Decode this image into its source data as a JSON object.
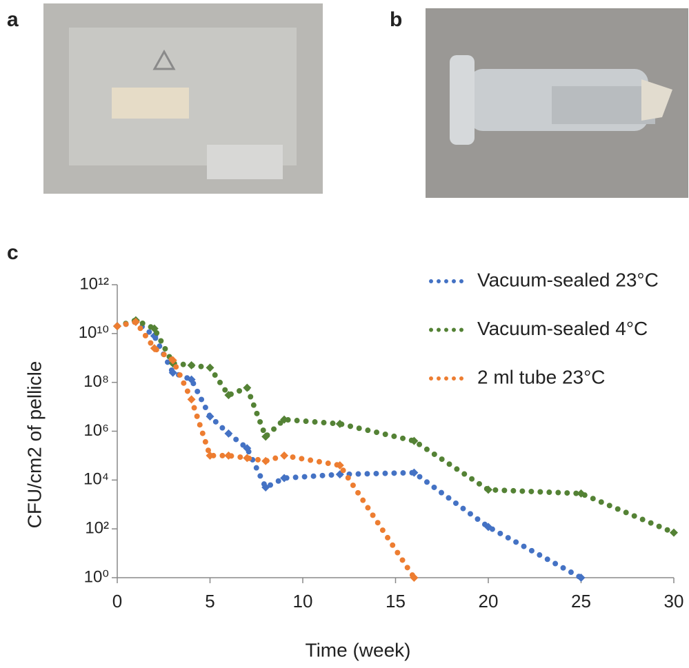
{
  "panel_labels": [
    "a",
    "b",
    "c"
  ],
  "chart_data": {
    "type": "line",
    "x_label": "Time (week)",
    "y_label": "CFU/cm2 of pellicle",
    "yscale": "log",
    "legend": "upper-right",
    "grid": false,
    "xlim": [
      0,
      30
    ],
    "xticks": [
      0,
      5,
      10,
      15,
      20,
      25,
      30
    ],
    "ylim": [
      1,
      1000000000000
    ],
    "yticks": [
      {
        "value": 1,
        "label": "10⁰"
      },
      {
        "value": 100,
        "label": "10²"
      },
      {
        "value": 10000,
        "label": "10⁴"
      },
      {
        "value": 1000000,
        "label": "10⁶"
      },
      {
        "value": 100000000,
        "label": "10⁸"
      },
      {
        "value": 10000000000,
        "label": "10¹⁰"
      },
      {
        "value": 1000000000000,
        "label": "10¹²"
      }
    ],
    "series": [
      {
        "name": "Vacuum-sealed 23°C",
        "color": "#4472c4",
        "x": [
          0,
          1,
          2,
          3,
          4,
          5,
          6,
          7,
          8,
          9,
          12,
          16,
          20,
          25
        ],
        "values": [
          20000000000,
          30000000000,
          8000000000,
          250000000,
          130000000,
          4000000,
          800000,
          200000,
          5000,
          12000,
          17000,
          20000,
          120,
          1
        ]
      },
      {
        "name": "Vacuum-sealed 4°C",
        "color": "#548235",
        "x": [
          0,
          1,
          2,
          3,
          4,
          5,
          6,
          7,
          8,
          9,
          12,
          16,
          20,
          25,
          30
        ],
        "values": [
          20000000000,
          35000000000,
          16000000000,
          600000000,
          500000000,
          400000000,
          30000000,
          60000000,
          600000,
          3000000,
          2000000,
          400000,
          4000,
          2800,
          70
        ]
      },
      {
        "name": "2 ml tube 23°C",
        "color": "#ed7d31",
        "x": [
          0,
          1,
          2,
          3,
          4,
          5,
          6,
          7,
          8,
          9,
          12,
          16
        ],
        "values": [
          20000000000,
          30000000000,
          2500000000,
          800000000,
          20000000,
          100000,
          100000,
          80000,
          60000,
          100000,
          40000,
          1
        ]
      }
    ]
  }
}
